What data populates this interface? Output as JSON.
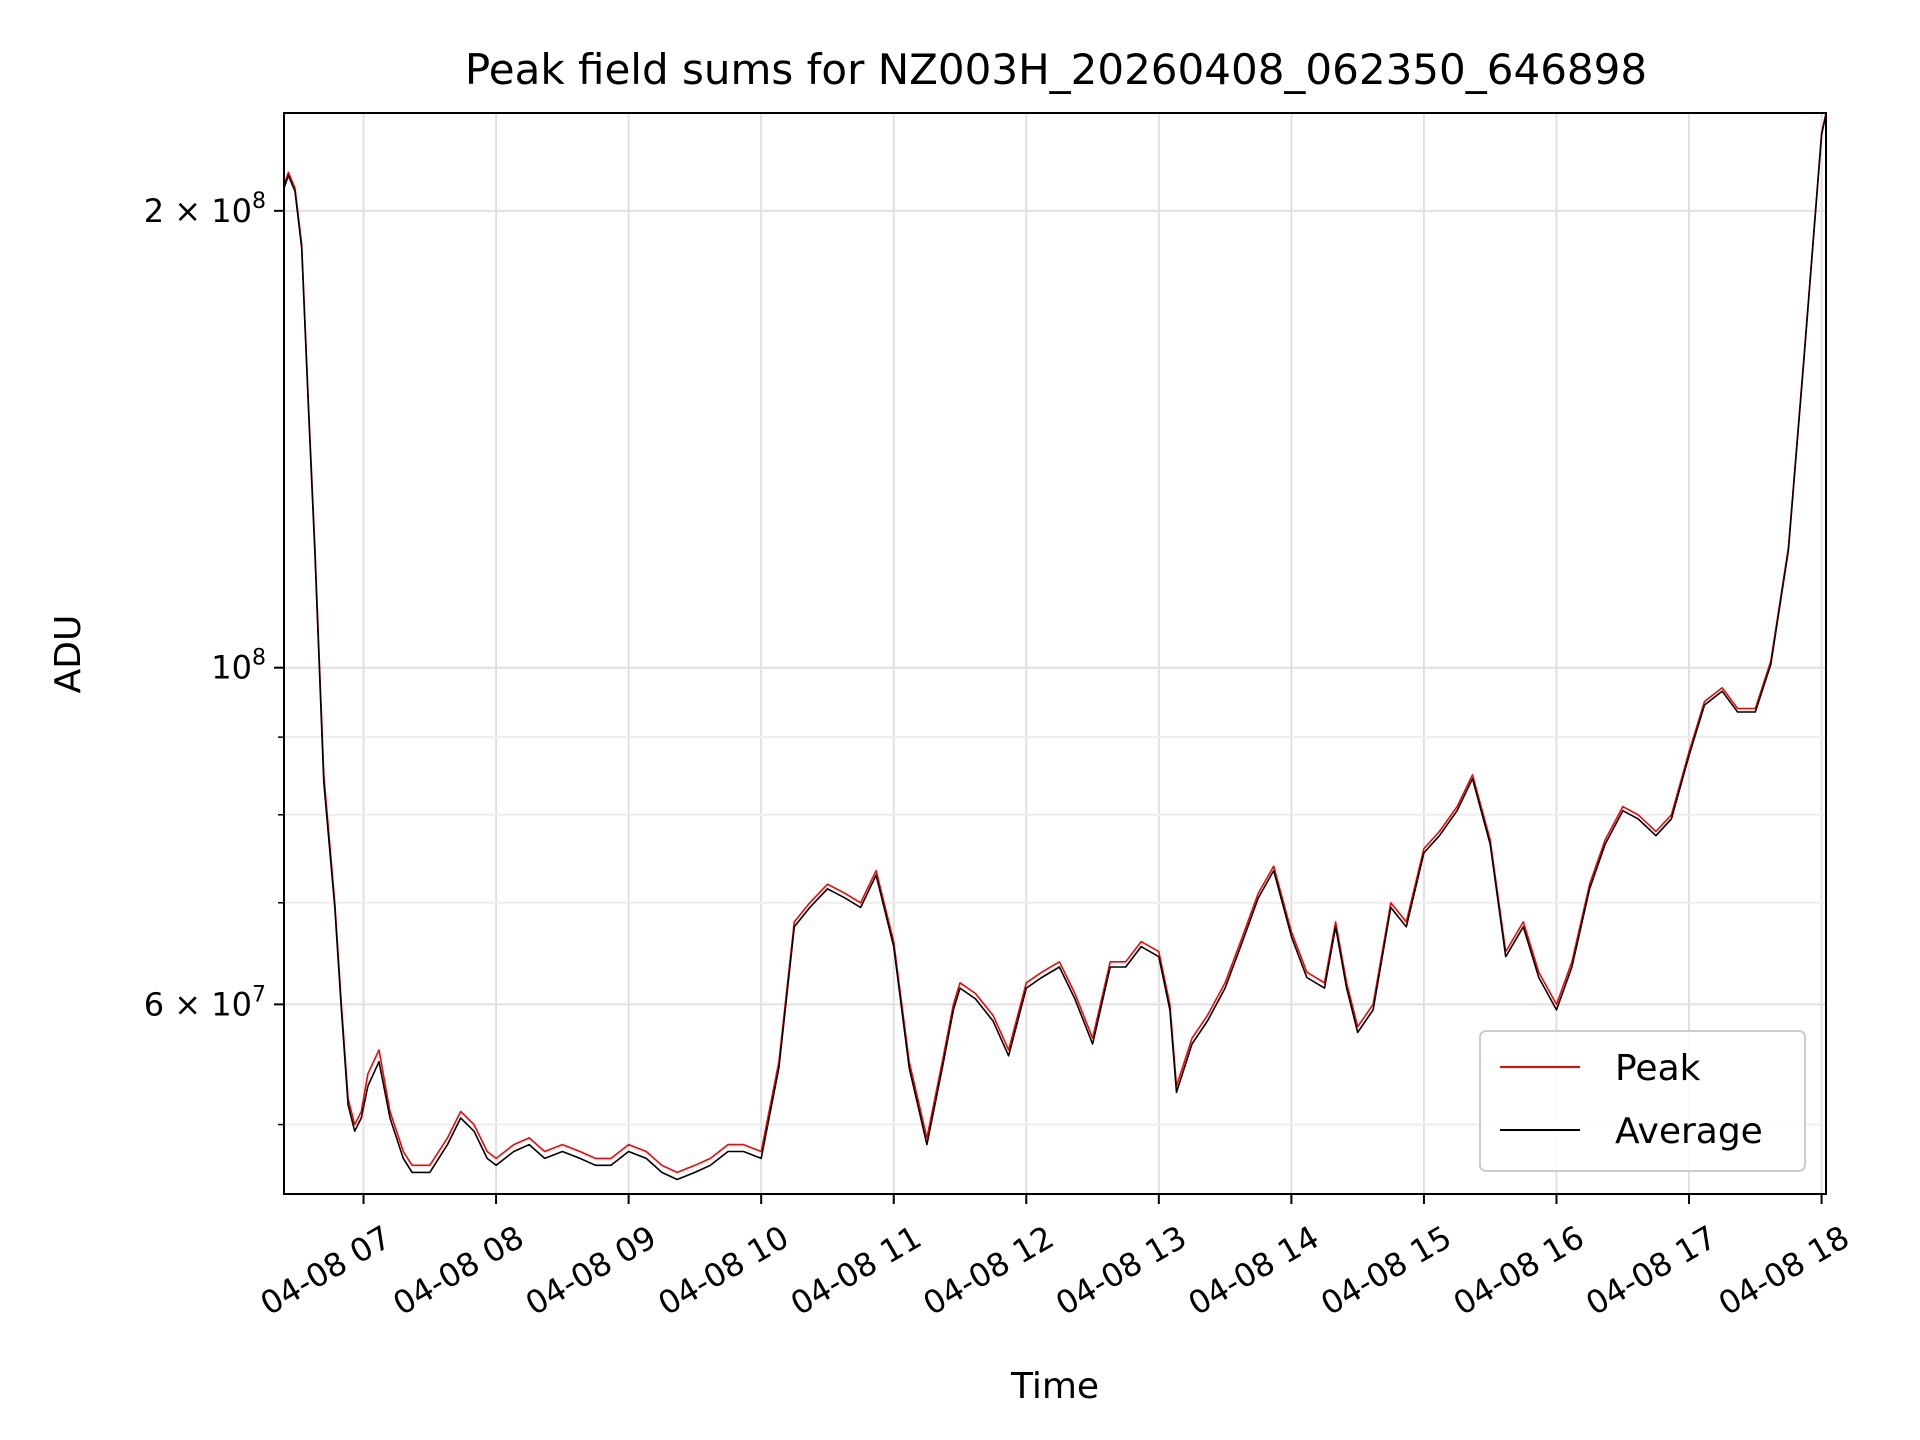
{
  "chart_data": {
    "type": "line",
    "title": "Peak field sums for NZ003H_20260408_062350_646898",
    "xlabel": "Time",
    "ylabel": "ADU",
    "y_scale": "log",
    "ylim": [
      45000000,
      232000000
    ],
    "xlim": [
      "04-08 06:24",
      "04-08 18:02"
    ],
    "grid": true,
    "legend_position": "lower-right",
    "x_ticks": [
      "04-08 07",
      "04-08 08",
      "04-08 09",
      "04-08 10",
      "04-08 11",
      "04-08 12",
      "04-08 13",
      "04-08 14",
      "04-08 15",
      "04-08 16",
      "04-08 17",
      "04-08 18"
    ],
    "y_ticks": [
      {
        "value": 200000000,
        "mantissa": "2",
        "exponent": "8"
      },
      {
        "value": 100000000,
        "mantissa": "",
        "exponent": "8"
      },
      {
        "value": 60000000,
        "mantissa": "6",
        "exponent": "7"
      }
    ],
    "x": [
      "06:24",
      "06:26",
      "06:29",
      "06:32",
      "06:35",
      "06:38",
      "06:42",
      "06:47",
      "06:50",
      "06:53",
      "06:56",
      "06:59",
      "07:02",
      "07:07",
      "07:12",
      "07:18",
      "07:22",
      "07:30",
      "07:38",
      "07:44",
      "07:50",
      "07:56",
      "08:00",
      "08:08",
      "08:15",
      "08:22",
      "08:30",
      "08:38",
      "08:45",
      "08:52",
      "09:00",
      "09:08",
      "09:15",
      "09:22",
      "09:30",
      "09:37",
      "09:45",
      "09:52",
      "10:00",
      "10:08",
      "10:15",
      "10:22",
      "10:30",
      "10:38",
      "10:45",
      "10:52",
      "11:00",
      "11:07",
      "11:15",
      "11:22",
      "11:27",
      "11:30",
      "11:37",
      "11:45",
      "11:52",
      "12:00",
      "12:07",
      "12:15",
      "12:22",
      "12:30",
      "12:38",
      "12:45",
      "12:52",
      "13:00",
      "13:05",
      "13:08",
      "13:15",
      "13:22",
      "13:30",
      "13:37",
      "13:45",
      "13:52",
      "14:00",
      "14:07",
      "14:15",
      "14:20",
      "14:25",
      "14:30",
      "14:37",
      "14:45",
      "14:52",
      "15:00",
      "15:07",
      "15:15",
      "15:22",
      "15:30",
      "15:37",
      "15:45",
      "15:52",
      "16:00",
      "16:07",
      "16:15",
      "16:22",
      "16:30",
      "16:37",
      "16:45",
      "16:52",
      "17:00",
      "17:07",
      "17:15",
      "17:22",
      "17:30",
      "17:37",
      "17:45",
      "17:52",
      "18:00",
      "18:02"
    ],
    "series": [
      {
        "name": "Peak",
        "color": "#ff0000",
        "values": [
          208000000,
          212000000,
          207000000,
          190000000,
          150000000,
          120000000,
          85000000,
          70000000,
          60000000,
          52000000,
          50000000,
          51000000,
          54000000,
          56000000,
          51000000,
          48000000,
          47000000,
          47000000,
          49000000,
          51000000,
          50000000,
          48000000,
          47500000,
          48500000,
          49000000,
          48000000,
          48500000,
          48000000,
          47500000,
          47500000,
          48500000,
          48000000,
          47000000,
          46500000,
          47000000,
          47500000,
          48500000,
          48500000,
          48000000,
          55000000,
          68000000,
          70000000,
          72000000,
          71000000,
          70000000,
          73500000,
          66000000,
          55000000,
          49000000,
          55000000,
          60000000,
          62000000,
          61000000,
          59000000,
          56000000,
          62000000,
          63000000,
          64000000,
          61000000,
          57000000,
          64000000,
          64000000,
          66000000,
          65000000,
          60000000,
          53000000,
          57000000,
          59000000,
          62000000,
          66000000,
          71000000,
          74000000,
          67000000,
          63000000,
          62000000,
          68000000,
          62000000,
          58000000,
          60000000,
          70000000,
          68000000,
          76000000,
          78000000,
          81000000,
          85000000,
          77000000,
          65000000,
          68000000,
          63000000,
          60000000,
          64000000,
          72000000,
          77000000,
          81000000,
          80000000,
          78000000,
          80000000,
          88000000,
          95000000,
          97000000,
          94000000,
          94000000,
          101000000,
          120000000,
          160000000,
          225000000,
          232000000
        ]
      },
      {
        "name": "Average",
        "color": "#000000",
        "values": [
          207000000,
          211000000,
          206000000,
          189000000,
          149000000,
          119000000,
          84000000,
          69500000,
          59500000,
          51500000,
          49500000,
          50500000,
          53000000,
          55000000,
          50500000,
          47500000,
          46500000,
          46500000,
          48500000,
          50500000,
          49500000,
          47500000,
          47000000,
          48000000,
          48500000,
          47500000,
          48000000,
          47500000,
          47000000,
          47000000,
          48000000,
          47500000,
          46500000,
          46000000,
          46500000,
          47000000,
          48000000,
          48000000,
          47500000,
          54500000,
          67500000,
          69500000,
          71500000,
          70500000,
          69500000,
          73000000,
          65500000,
          54500000,
          48500000,
          54500000,
          59500000,
          61500000,
          60500000,
          58500000,
          55500000,
          61500000,
          62500000,
          63500000,
          60500000,
          56500000,
          63500000,
          63500000,
          65500000,
          64500000,
          59500000,
          52500000,
          56500000,
          58500000,
          61500000,
          65500000,
          70500000,
          73500000,
          66500000,
          62500000,
          61500000,
          67500000,
          61500000,
          57500000,
          59500000,
          69500000,
          67500000,
          75500000,
          77500000,
          80500000,
          84500000,
          76500000,
          64500000,
          67500000,
          62500000,
          59500000,
          63500000,
          71500000,
          76500000,
          80500000,
          79500000,
          77500000,
          79500000,
          87500000,
          94500000,
          96500000,
          93500000,
          93500000,
          100500000,
          119500000,
          159500000,
          224500000,
          231500000
        ]
      }
    ]
  }
}
